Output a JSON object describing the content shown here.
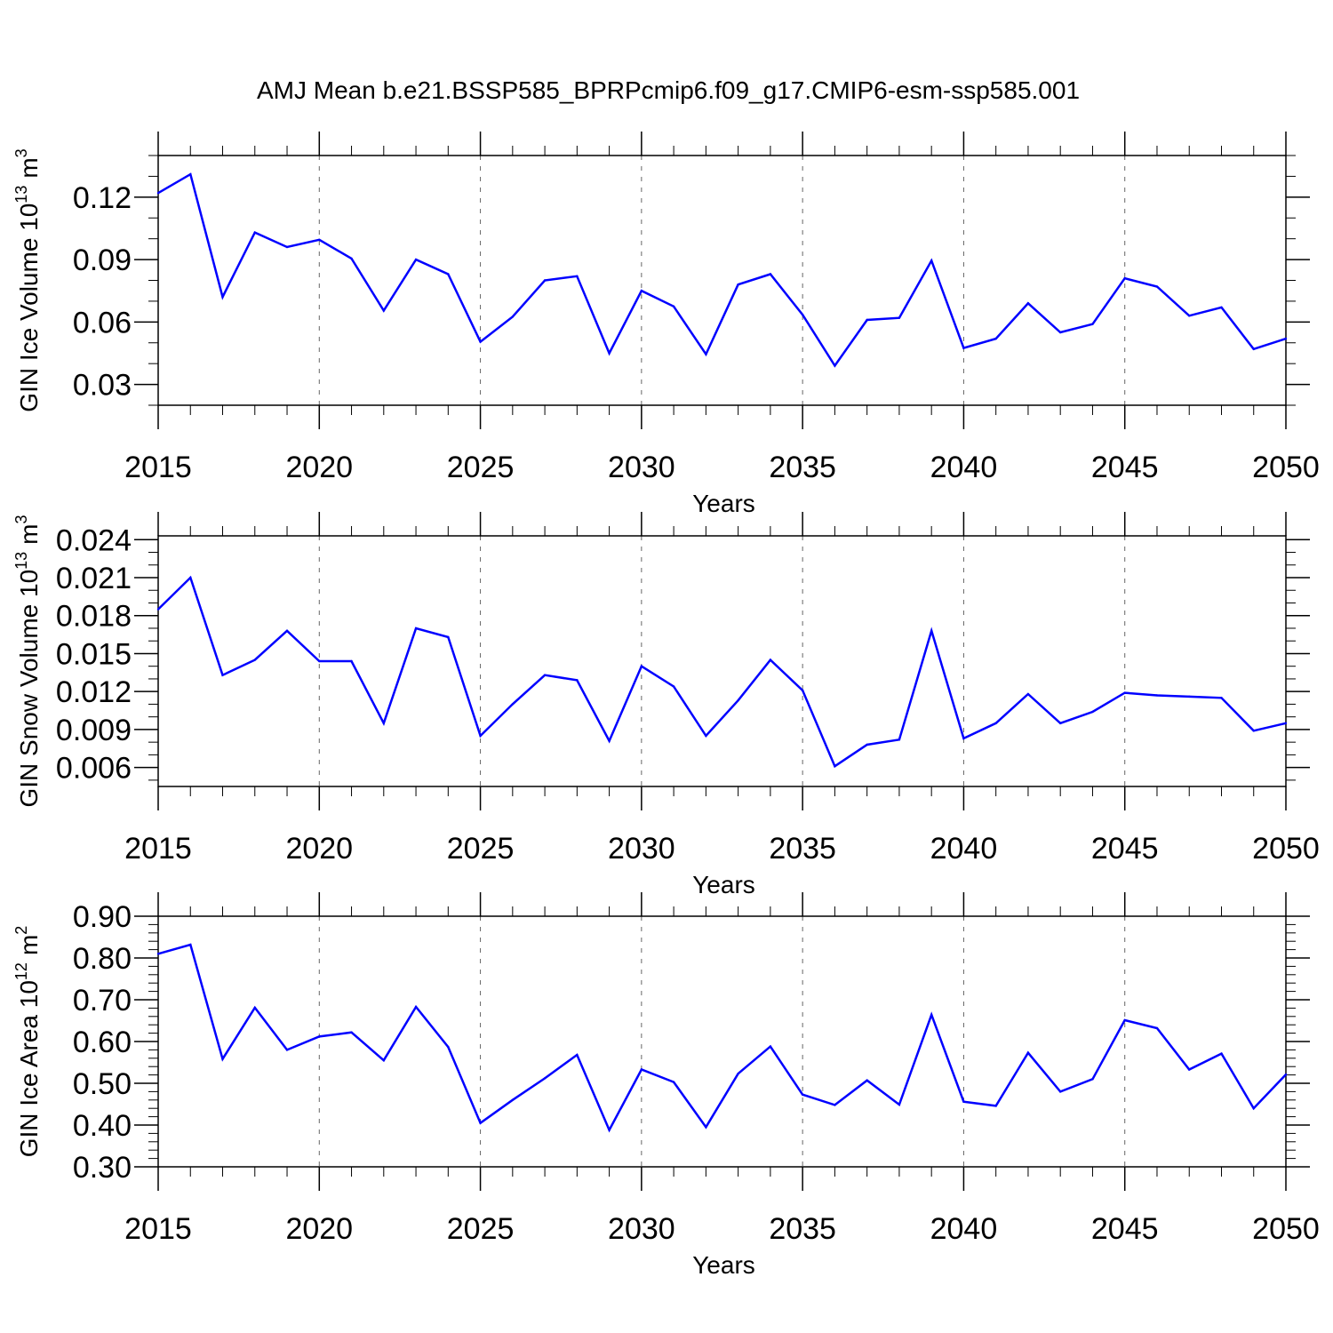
{
  "figure": {
    "title": "AMJ Mean b.e21.BSSP585_BPRPcmip6.f09_g17.CMIP6-esm-ssp585.001"
  },
  "style": {
    "line_color": "#0000ff",
    "axis_color": "#000000",
    "grid_color": "#666666",
    "background": "#ffffff"
  },
  "chart_data": [
    {
      "type": "line",
      "xlabel": "Years",
      "ylabel": "GIN Ice Volume 10",
      "ylabel_exp": "13",
      "ylabel_unit": "m",
      "ylabel_unit_exp": "3",
      "xlim": [
        2015,
        2050
      ],
      "ylim": [
        0.02,
        0.14
      ],
      "x_ticks": [
        2015,
        2020,
        2025,
        2030,
        2035,
        2040,
        2045,
        2050
      ],
      "y_ticks": [
        0.03,
        0.06,
        0.09,
        0.12
      ],
      "y_tick_labels": [
        "0.03",
        "0.06",
        "0.09",
        "0.12"
      ],
      "y_minor": 0.01,
      "x": [
        2015,
        2016,
        2017,
        2018,
        2019,
        2020,
        2021,
        2022,
        2023,
        2024,
        2025,
        2026,
        2027,
        2028,
        2029,
        2030,
        2031,
        2032,
        2033,
        2034,
        2035,
        2036,
        2037,
        2038,
        2039,
        2040,
        2041,
        2042,
        2043,
        2044,
        2045,
        2046,
        2047,
        2048,
        2049,
        2050
      ],
      "values": [
        0.122,
        0.131,
        0.072,
        0.103,
        0.096,
        0.0995,
        0.0905,
        0.0655,
        0.09,
        0.083,
        0.0505,
        0.0625,
        0.08,
        0.082,
        0.045,
        0.075,
        0.0675,
        0.0445,
        0.078,
        0.083,
        0.0635,
        0.039,
        0.061,
        0.062,
        0.0895,
        0.0475,
        0.052,
        0.069,
        0.055,
        0.059,
        0.081,
        0.077,
        0.063,
        0.067,
        0.047,
        0.052
      ]
    },
    {
      "type": "line",
      "xlabel": "Years",
      "ylabel": "GIN Snow Volume 10",
      "ylabel_exp": "13",
      "ylabel_unit": "m",
      "ylabel_unit_exp": "3",
      "xlim": [
        2015,
        2050
      ],
      "ylim": [
        0.0045,
        0.0243
      ],
      "x_ticks": [
        2015,
        2020,
        2025,
        2030,
        2035,
        2040,
        2045,
        2050
      ],
      "y_ticks": [
        0.006,
        0.009,
        0.012,
        0.015,
        0.018,
        0.021,
        0.024
      ],
      "y_tick_labels": [
        "0.006",
        "0.009",
        "0.012",
        "0.015",
        "0.018",
        "0.021",
        "0.024"
      ],
      "y_minor": 0.001,
      "x": [
        2015,
        2016,
        2017,
        2018,
        2019,
        2020,
        2021,
        2022,
        2023,
        2024,
        2025,
        2026,
        2027,
        2028,
        2029,
        2030,
        2031,
        2032,
        2033,
        2034,
        2035,
        2036,
        2037,
        2038,
        2039,
        2040,
        2041,
        2042,
        2043,
        2044,
        2045,
        2046,
        2047,
        2048,
        2049,
        2050
      ],
      "values": [
        0.0185,
        0.021,
        0.0133,
        0.0145,
        0.0168,
        0.0144,
        0.0144,
        0.0095,
        0.017,
        0.0163,
        0.0085,
        0.011,
        0.0133,
        0.0129,
        0.0081,
        0.014,
        0.0124,
        0.0085,
        0.0113,
        0.0145,
        0.0121,
        0.0061,
        0.0078,
        0.0082,
        0.0168,
        0.0083,
        0.0095,
        0.0118,
        0.0095,
        0.0104,
        0.0119,
        0.0117,
        0.0116,
        0.0115,
        0.0089,
        0.0095
      ]
    },
    {
      "type": "line",
      "xlabel": "Years",
      "ylabel": "GIN Ice Area 10",
      "ylabel_exp": "12",
      "ylabel_unit": "m",
      "ylabel_unit_exp": "2",
      "xlim": [
        2015,
        2050
      ],
      "ylim": [
        0.3,
        0.9
      ],
      "x_ticks": [
        2015,
        2020,
        2025,
        2030,
        2035,
        2040,
        2045,
        2050
      ],
      "y_ticks": [
        0.3,
        0.4,
        0.5,
        0.6,
        0.7,
        0.8,
        0.9
      ],
      "y_tick_labels": [
        "0.30",
        "0.40",
        "0.50",
        "0.60",
        "0.70",
        "0.80",
        "0.90"
      ],
      "y_minor": 0.02,
      "x": [
        2015,
        2016,
        2017,
        2018,
        2019,
        2020,
        2021,
        2022,
        2023,
        2024,
        2025,
        2026,
        2027,
        2028,
        2029,
        2030,
        2031,
        2032,
        2033,
        2034,
        2035,
        2036,
        2037,
        2038,
        2039,
        2040,
        2041,
        2042,
        2043,
        2044,
        2045,
        2046,
        2047,
        2048,
        2049,
        2050
      ],
      "values": [
        0.81,
        0.832,
        0.558,
        0.681,
        0.58,
        0.612,
        0.622,
        0.555,
        0.683,
        0.587,
        0.405,
        0.46,
        0.512,
        0.568,
        0.388,
        0.533,
        0.503,
        0.395,
        0.523,
        0.588,
        0.473,
        0.448,
        0.507,
        0.449,
        0.664,
        0.456,
        0.446,
        0.573,
        0.48,
        0.51,
        0.651,
        0.632,
        0.533,
        0.571,
        0.44,
        0.521
      ]
    }
  ]
}
